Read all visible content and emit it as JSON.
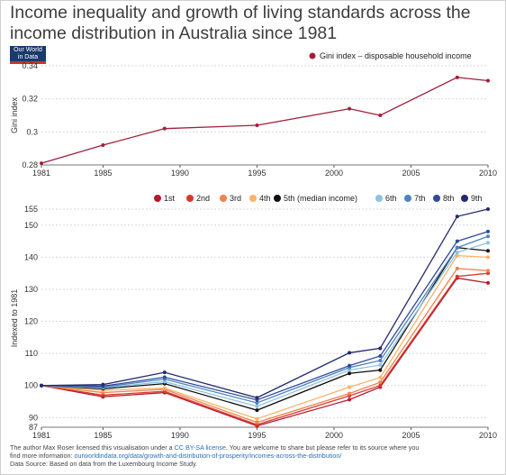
{
  "title": "Income inequality and growth of living standards across the income distribution in Australia since 1981",
  "logo": {
    "line1": "Our World",
    "line2": "in Data"
  },
  "footer": {
    "line1_pre": "The author Max Roser licensed this visualisation under a ",
    "line1_link": "CC BY-SA license",
    "line1_post": ". You are welcome to share but please refer to its source where you",
    "line2_pre": "find more information: ",
    "line2_link": "ourworldindata.org/data/growth-and-distribution-of-prosperity/incomes-across-the-distribution/",
    "line3": "Data Source: Based on data from the Luxembourg Income Study."
  },
  "chart_data": [
    {
      "type": "line",
      "ylabel": "Gini index",
      "xlim": [
        1981,
        2010
      ],
      "ylim": [
        0.28,
        0.34
      ],
      "x_ticks": [
        1981,
        1985,
        1990,
        1995,
        2000,
        2005,
        2010
      ],
      "y_ticks": [
        0.28,
        0.3,
        0.32,
        0.34
      ],
      "y_tick_labels": [
        "0.28",
        "0.3",
        "0.32",
        "0.34"
      ],
      "grid": true,
      "legend_position": "top-right",
      "series": [
        {
          "name": "Gini index – disposable household income",
          "color": "#a0203a",
          "x": [
            1981,
            1985,
            1989,
            1995,
            2001,
            2003,
            2008,
            2010
          ],
          "y": [
            0.281,
            0.292,
            0.302,
            0.304,
            0.314,
            0.31,
            0.333,
            0.331
          ]
        }
      ]
    },
    {
      "type": "line",
      "ylabel": "Indexed to 1981",
      "xlim": [
        1981,
        2010
      ],
      "ylim": [
        87,
        155
      ],
      "x_ticks": [
        1981,
        1985,
        1990,
        1995,
        2000,
        2005,
        2010
      ],
      "y_ticks": [
        87,
        90,
        100,
        110,
        120,
        130,
        140,
        150,
        155
      ],
      "grid": true,
      "legend_position": "top",
      "x": [
        1981,
        1985,
        1989,
        1995,
        2001,
        2003,
        2008,
        2010
      ],
      "series": [
        {
          "name": "1st",
          "color": "#b5192c",
          "y": [
            100,
            96.5,
            97.8,
            87.4,
            95.6,
            99.5,
            133.5,
            132.0
          ]
        },
        {
          "name": "2nd",
          "color": "#d83a2e",
          "y": [
            100,
            97.0,
            98.2,
            87.8,
            96.8,
            100.0,
            134.0,
            135.0
          ]
        },
        {
          "name": "3rd",
          "color": "#ee8250",
          "y": [
            100,
            97.8,
            98.8,
            88.5,
            97.5,
            101.0,
            136.5,
            135.8
          ]
        },
        {
          "name": "4th",
          "color": "#f7b46a",
          "y": [
            100,
            98.5,
            99.2,
            89.6,
            99.5,
            102.5,
            140.5,
            140.0
          ]
        },
        {
          "name": "5th (median income)",
          "color": "#111111",
          "y": [
            100,
            99.0,
            100.6,
            92.3,
            103.8,
            104.8,
            143.0,
            142.0
          ]
        },
        {
          "name": "6th",
          "color": "#8ec2e0",
          "y": [
            100,
            99.3,
            101.2,
            93.5,
            104.8,
            106.4,
            141.5,
            144.5
          ]
        },
        {
          "name": "7th",
          "color": "#4f83bd",
          "y": [
            100,
            99.5,
            102.0,
            94.6,
            105.6,
            107.8,
            143.0,
            146.5
          ]
        },
        {
          "name": "8th",
          "color": "#2f4a9a",
          "y": [
            100,
            99.8,
            102.6,
            95.5,
            106.2,
            109.2,
            145.0,
            148.0
          ]
        },
        {
          "name": "9th",
          "color": "#232a6e",
          "y": [
            100,
            100.3,
            104.1,
            96.2,
            110.2,
            111.6,
            152.7,
            155.0
          ]
        }
      ]
    }
  ]
}
